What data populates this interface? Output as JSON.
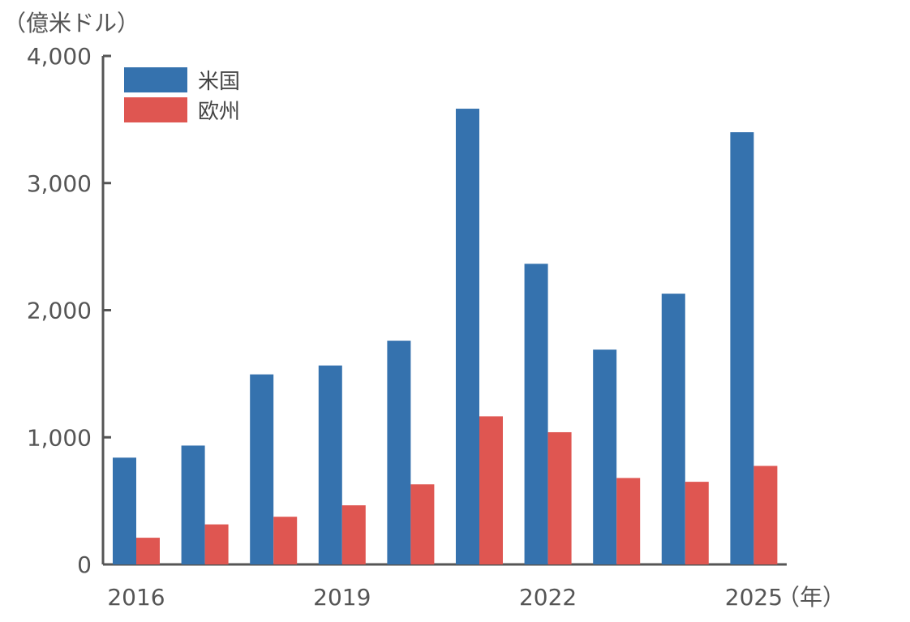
{
  "chart_data": {
    "type": "bar",
    "y_unit": "（億米ドル）",
    "x_unit": "（年）",
    "categories": [
      "2016",
      "2017",
      "2018",
      "2019",
      "2020",
      "2021",
      "2022",
      "2023",
      "2024",
      "2025"
    ],
    "x_tick_labels": [
      "2016",
      "2019",
      "2022",
      "2025"
    ],
    "series": [
      {
        "name": "米国",
        "color": "#3572ae",
        "values": [
          840,
          935,
          1495,
          1565,
          1760,
          3585,
          2365,
          1690,
          2130,
          3400
        ]
      },
      {
        "name": "欧州",
        "color": "#df5651",
        "values": [
          210,
          315,
          375,
          465,
          630,
          1165,
          1040,
          680,
          650,
          775
        ]
      }
    ],
    "ylim": [
      0,
      4000
    ],
    "y_ticks": [
      0,
      1000,
      2000,
      3000,
      4000
    ],
    "y_tick_labels": [
      "0",
      "1,000",
      "2,000",
      "3,000",
      "4,000"
    ],
    "grid": false,
    "legend_position": "top-left"
  }
}
